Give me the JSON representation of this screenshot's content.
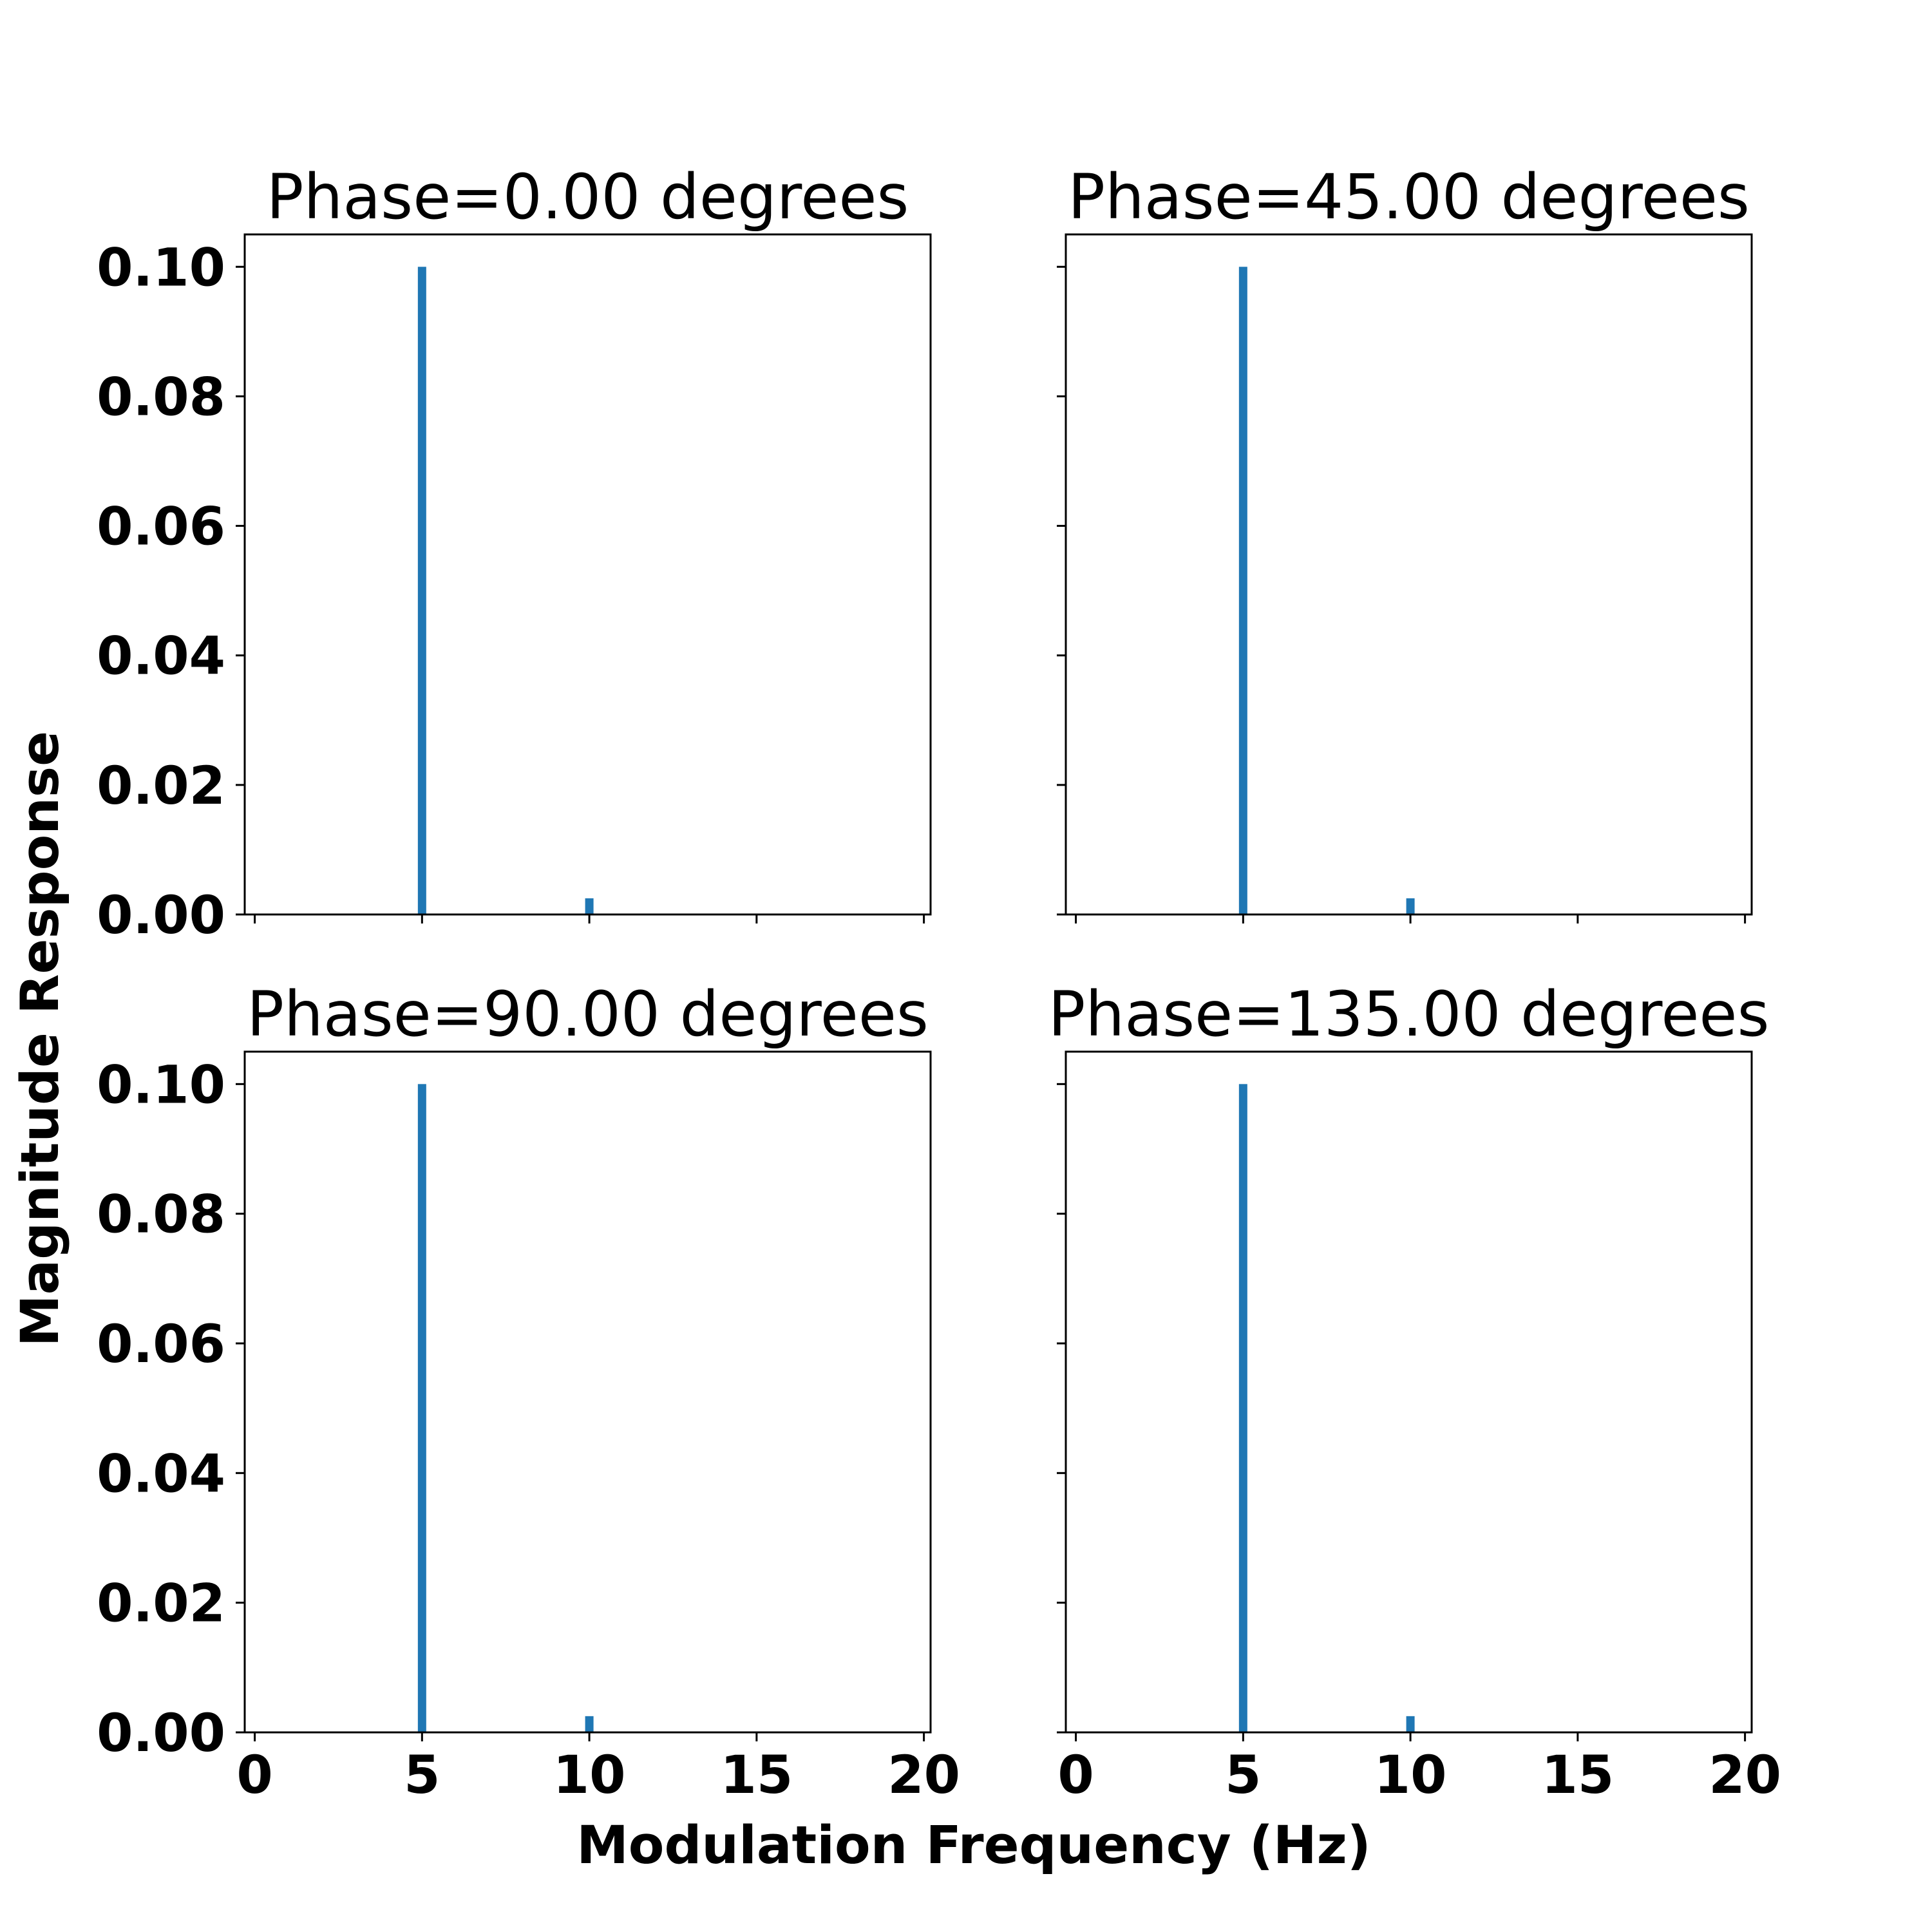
{
  "chart_data": {
    "type": "bar",
    "shared_xlabel": "Modulation Frequency (Hz)",
    "shared_ylabel": "Magnitude Response",
    "xlim": [
      -0.3,
      20.2
    ],
    "ylim": [
      0,
      0.105
    ],
    "xticks": [
      0,
      5,
      10,
      15,
      20
    ],
    "yticks": [
      0.0,
      0.02,
      0.04,
      0.06,
      0.08,
      0.1
    ],
    "bar_width": 0.25,
    "color": "#1f77b4",
    "panels": [
      {
        "title": "Phase=0.00 degrees",
        "x": [
          5,
          10
        ],
        "values": [
          0.1,
          0.0025
        ]
      },
      {
        "title": "Phase=45.00 degrees",
        "x": [
          5,
          10
        ],
        "values": [
          0.1,
          0.0025
        ]
      },
      {
        "title": "Phase=90.00 degrees",
        "x": [
          5,
          10
        ],
        "values": [
          0.1,
          0.0025
        ]
      },
      {
        "title": "Phase=135.00 degrees",
        "x": [
          5,
          10
        ],
        "values": [
          0.1,
          0.0025
        ]
      }
    ]
  }
}
